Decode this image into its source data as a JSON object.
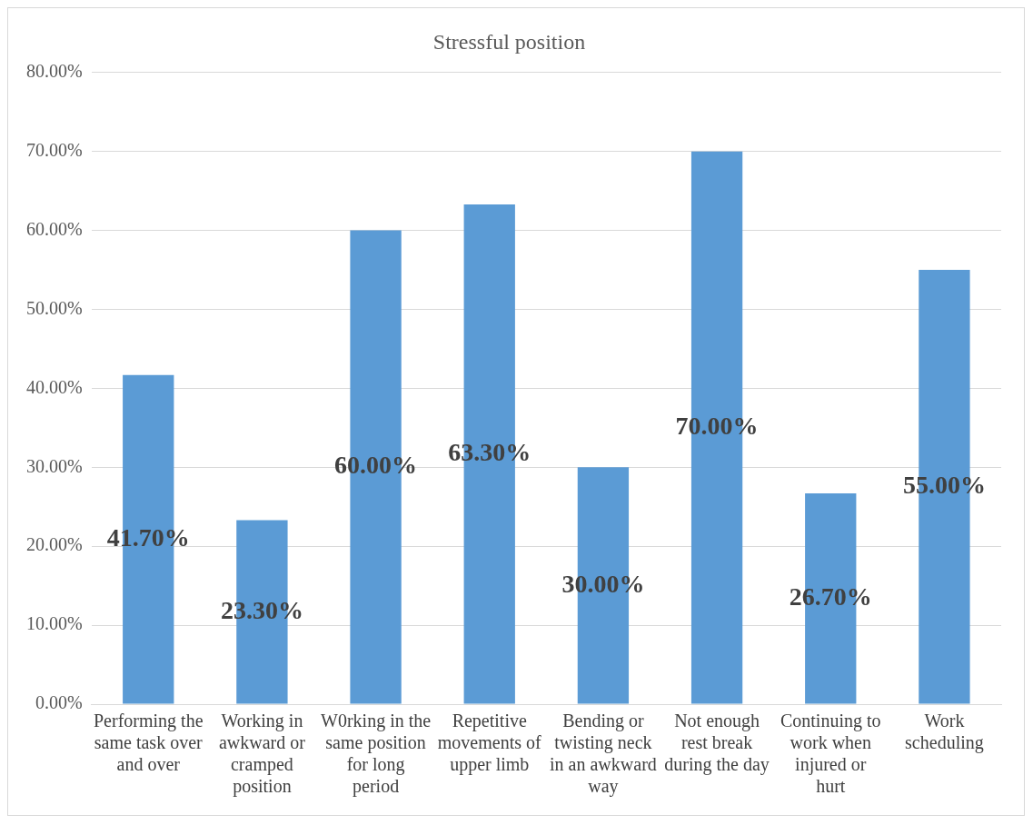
{
  "chart_data": {
    "type": "bar",
    "title": "Stressful position",
    "categories": [
      "Performing the same task over and over",
      "Working in awkward or cramped position",
      "W0rking in the same position for long period",
      "Repetitive movements of upper limb",
      "Bending or twisting neck in an awkward way",
      "Not enough rest break during the day",
      "Continuing to work when injured or hurt",
      "Work scheduling"
    ],
    "series": [
      {
        "color": "#5b9bd5",
        "values": [
          41.7,
          23.3,
          60,
          63.3,
          30,
          70,
          26.7,
          55
        ],
        "value_labels": [
          "41.70%",
          "23.30%",
          "60.00%",
          "63.30%",
          "30.00%",
          "70.00%",
          "26.70%",
          "55.00%"
        ]
      }
    ],
    "ylim": [
      0,
      80
    ],
    "yticks": [
      {
        "value": 0,
        "label": "0.00%"
      },
      {
        "value": 10,
        "label": "10.00%"
      },
      {
        "value": 20,
        "label": "20.00%"
      },
      {
        "value": 30,
        "label": "30.00%"
      },
      {
        "value": 40,
        "label": "40.00%"
      },
      {
        "value": 50,
        "label": "50.00%"
      },
      {
        "value": 60,
        "label": "60.00%"
      },
      {
        "value": 70,
        "label": "70.00%"
      },
      {
        "value": 80,
        "label": "80.00%"
      }
    ],
    "grid": "y",
    "legend": false
  }
}
